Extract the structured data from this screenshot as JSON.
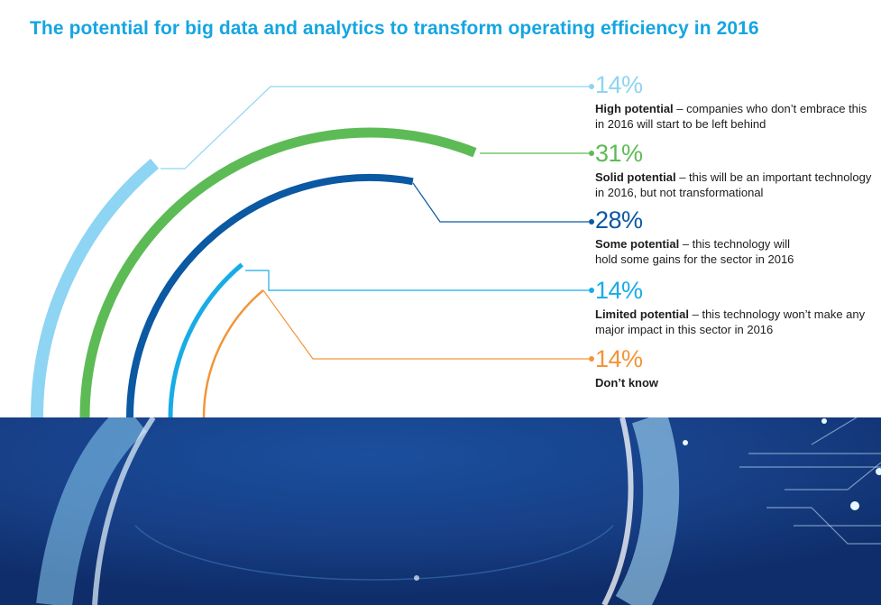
{
  "title": "The potential for big data and analytics to transform operating efficiency in 2016",
  "chart_data": {
    "type": "radial-bar",
    "title": "The potential for big data and analytics to transform operating efficiency in 2016",
    "categories": [
      "High potential",
      "Solid potential",
      "Some potential",
      "Limited potential",
      "Don’t know"
    ],
    "values": [
      14,
      31,
      28,
      14,
      14
    ],
    "unit": "%",
    "series": [
      {
        "label": "High potential",
        "value": 14,
        "value_label": "14%",
        "description": "– companies who don’t embrace this in 2016 will start to be left behind",
        "color": "#8ed4f3"
      },
      {
        "label": "Solid potential",
        "value": 31,
        "value_label": "31%",
        "description": "– this will be an important technology in 2016, but not transformational",
        "color": "#5dbb55"
      },
      {
        "label": "Some potential",
        "value": 28,
        "value_label": "28%",
        "description": "– this technology will hold some gains for the sector in 2016",
        "color": "#0b58a3"
      },
      {
        "label": "Limited potential",
        "value": 14,
        "value_label": "14%",
        "description": "– this technology won’t make any major impact in this sector in 2016",
        "color": "#18ace6"
      },
      {
        "label": "Don’t know",
        "value": 14,
        "value_label": "14%",
        "description": "",
        "color": "#f39439"
      }
    ]
  },
  "colors": {
    "title": "#14a5e2",
    "text": "#1d1d1b",
    "background_image": "#153f86"
  }
}
